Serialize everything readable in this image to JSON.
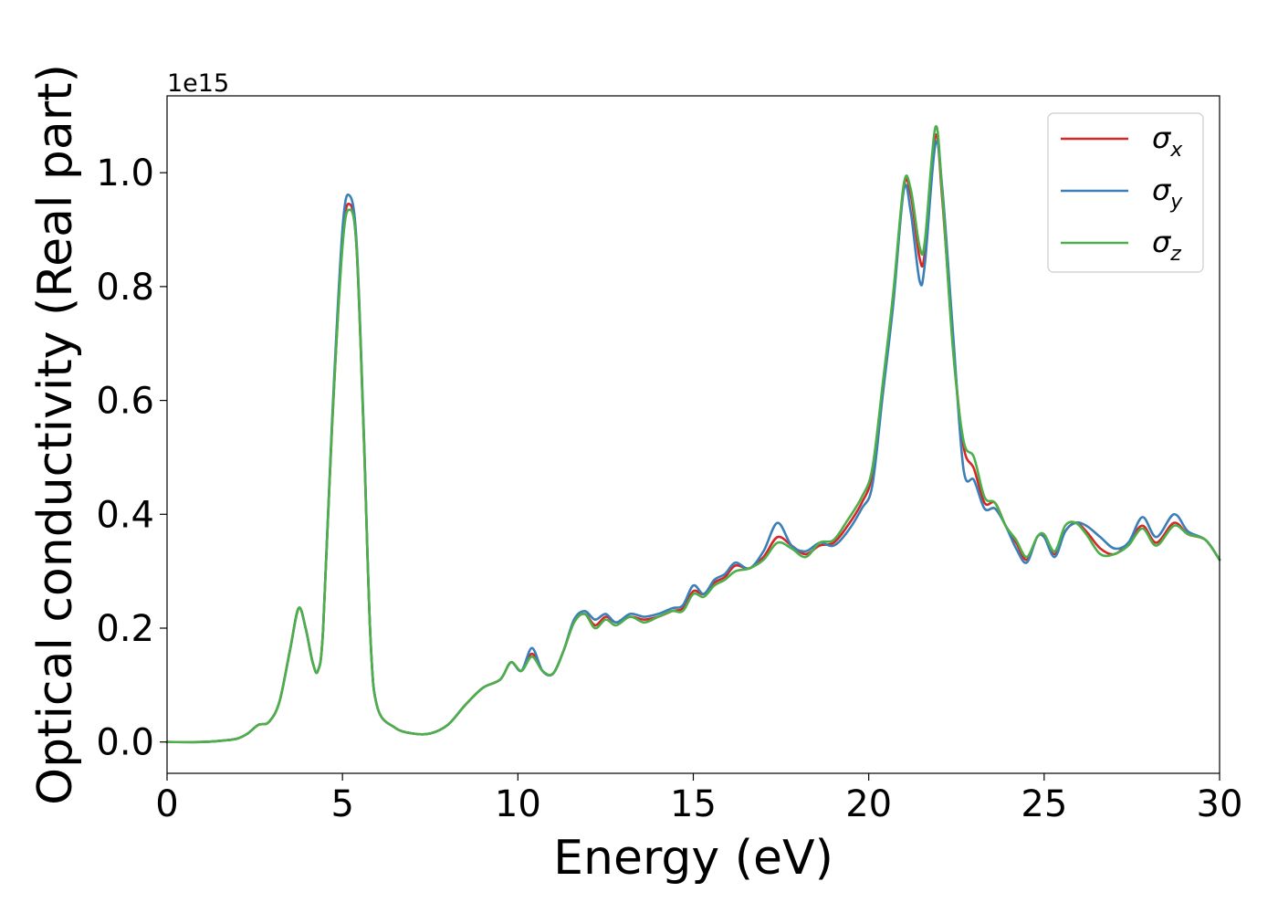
{
  "chart_data": {
    "type": "line",
    "xlabel": "Energy (eV)",
    "ylabel": "Optical conductivity (Real part)",
    "y_offset_label": "1e15",
    "y_scale_factor": 1000000000000000.0,
    "xlim": [
      0,
      30
    ],
    "ylim": [
      -0.055,
      1.135
    ],
    "x_ticks": [
      0,
      5,
      10,
      15,
      20,
      25,
      30
    ],
    "x_tick_labels": [
      "0",
      "5",
      "10",
      "15",
      "20",
      "25",
      "30"
    ],
    "y_ticks": [
      0.0,
      0.2,
      0.4,
      0.6,
      0.8,
      1.0
    ],
    "y_tick_labels": [
      "0.0",
      "0.2",
      "0.4",
      "0.6",
      "0.8",
      "1.0"
    ],
    "grid": false,
    "legend_position": "top-right",
    "series": [
      {
        "name": "σ",
        "subscript": "x",
        "color": "#d62728",
        "points": [
          [
            0,
            0.0
          ],
          [
            1,
            0.0
          ],
          [
            1.5,
            0.002
          ],
          [
            2,
            0.006
          ],
          [
            2.3,
            0.015
          ],
          [
            2.6,
            0.03
          ],
          [
            2.9,
            0.035
          ],
          [
            3.2,
            0.07
          ],
          [
            3.5,
            0.16
          ],
          [
            3.75,
            0.235
          ],
          [
            3.95,
            0.2
          ],
          [
            4.15,
            0.14
          ],
          [
            4.3,
            0.125
          ],
          [
            4.45,
            0.2
          ],
          [
            4.7,
            0.55
          ],
          [
            5.0,
            0.88
          ],
          [
            5.2,
            0.945
          ],
          [
            5.4,
            0.87
          ],
          [
            5.6,
            0.55
          ],
          [
            5.8,
            0.18
          ],
          [
            6.0,
            0.06
          ],
          [
            6.5,
            0.025
          ],
          [
            7.0,
            0.015
          ],
          [
            7.5,
            0.015
          ],
          [
            8.0,
            0.03
          ],
          [
            8.5,
            0.065
          ],
          [
            9.0,
            0.095
          ],
          [
            9.5,
            0.11
          ],
          [
            9.8,
            0.14
          ],
          [
            10.1,
            0.125
          ],
          [
            10.4,
            0.155
          ],
          [
            10.7,
            0.125
          ],
          [
            11.0,
            0.12
          ],
          [
            11.3,
            0.16
          ],
          [
            11.6,
            0.21
          ],
          [
            11.9,
            0.225
          ],
          [
            12.2,
            0.205
          ],
          [
            12.5,
            0.22
          ],
          [
            12.8,
            0.21
          ],
          [
            13.2,
            0.22
          ],
          [
            13.6,
            0.215
          ],
          [
            14.0,
            0.22
          ],
          [
            14.4,
            0.23
          ],
          [
            14.7,
            0.235
          ],
          [
            15.0,
            0.265
          ],
          [
            15.3,
            0.26
          ],
          [
            15.6,
            0.28
          ],
          [
            15.9,
            0.29
          ],
          [
            16.2,
            0.31
          ],
          [
            16.6,
            0.305
          ],
          [
            17.0,
            0.325
          ],
          [
            17.4,
            0.36
          ],
          [
            17.8,
            0.345
          ],
          [
            18.2,
            0.33
          ],
          [
            18.6,
            0.345
          ],
          [
            19.0,
            0.35
          ],
          [
            19.4,
            0.38
          ],
          [
            19.8,
            0.42
          ],
          [
            20.1,
            0.47
          ],
          [
            20.4,
            0.62
          ],
          [
            20.7,
            0.78
          ],
          [
            21.0,
            0.975
          ],
          [
            21.2,
            0.96
          ],
          [
            21.45,
            0.85
          ],
          [
            21.6,
            0.86
          ],
          [
            21.9,
            1.065
          ],
          [
            22.1,
            0.95
          ],
          [
            22.4,
            0.7
          ],
          [
            22.7,
            0.52
          ],
          [
            23.0,
            0.48
          ],
          [
            23.3,
            0.42
          ],
          [
            23.6,
            0.42
          ],
          [
            23.9,
            0.38
          ],
          [
            24.2,
            0.35
          ],
          [
            24.5,
            0.32
          ],
          [
            24.8,
            0.36
          ],
          [
            25.0,
            0.36
          ],
          [
            25.3,
            0.33
          ],
          [
            25.6,
            0.37
          ],
          [
            25.9,
            0.385
          ],
          [
            26.2,
            0.37
          ],
          [
            26.6,
            0.34
          ],
          [
            27.0,
            0.33
          ],
          [
            27.4,
            0.35
          ],
          [
            27.8,
            0.38
          ],
          [
            28.2,
            0.35
          ],
          [
            28.7,
            0.385
          ],
          [
            29.1,
            0.365
          ],
          [
            29.6,
            0.355
          ],
          [
            30.0,
            0.32
          ]
        ]
      },
      {
        "name": "σ",
        "subscript": "y",
        "color": "#3b7fb8",
        "points": [
          [
            0,
            0.0
          ],
          [
            1,
            0.0
          ],
          [
            1.5,
            0.002
          ],
          [
            2,
            0.006
          ],
          [
            2.3,
            0.015
          ],
          [
            2.6,
            0.03
          ],
          [
            2.9,
            0.035
          ],
          [
            3.2,
            0.07
          ],
          [
            3.5,
            0.16
          ],
          [
            3.75,
            0.235
          ],
          [
            3.95,
            0.2
          ],
          [
            4.15,
            0.14
          ],
          [
            4.3,
            0.125
          ],
          [
            4.45,
            0.2
          ],
          [
            4.7,
            0.56
          ],
          [
            5.0,
            0.9
          ],
          [
            5.2,
            0.96
          ],
          [
            5.4,
            0.88
          ],
          [
            5.6,
            0.56
          ],
          [
            5.8,
            0.18
          ],
          [
            6.0,
            0.06
          ],
          [
            6.5,
            0.025
          ],
          [
            7.0,
            0.015
          ],
          [
            7.5,
            0.015
          ],
          [
            8.0,
            0.03
          ],
          [
            8.5,
            0.065
          ],
          [
            9.0,
            0.095
          ],
          [
            9.5,
            0.11
          ],
          [
            9.8,
            0.14
          ],
          [
            10.1,
            0.125
          ],
          [
            10.4,
            0.165
          ],
          [
            10.7,
            0.125
          ],
          [
            11.0,
            0.12
          ],
          [
            11.3,
            0.16
          ],
          [
            11.6,
            0.215
          ],
          [
            11.9,
            0.23
          ],
          [
            12.2,
            0.215
          ],
          [
            12.5,
            0.225
          ],
          [
            12.8,
            0.21
          ],
          [
            13.2,
            0.225
          ],
          [
            13.6,
            0.22
          ],
          [
            14.0,
            0.225
          ],
          [
            14.4,
            0.235
          ],
          [
            14.7,
            0.24
          ],
          [
            15.0,
            0.275
          ],
          [
            15.3,
            0.26
          ],
          [
            15.6,
            0.285
          ],
          [
            15.9,
            0.295
          ],
          [
            16.2,
            0.315
          ],
          [
            16.6,
            0.305
          ],
          [
            17.0,
            0.335
          ],
          [
            17.4,
            0.385
          ],
          [
            17.8,
            0.345
          ],
          [
            18.2,
            0.335
          ],
          [
            18.6,
            0.35
          ],
          [
            19.0,
            0.345
          ],
          [
            19.4,
            0.37
          ],
          [
            19.8,
            0.41
          ],
          [
            20.1,
            0.45
          ],
          [
            20.4,
            0.61
          ],
          [
            20.7,
            0.77
          ],
          [
            21.0,
            0.97
          ],
          [
            21.2,
            0.93
          ],
          [
            21.45,
            0.81
          ],
          [
            21.6,
            0.84
          ],
          [
            21.9,
            1.05
          ],
          [
            22.1,
            0.97
          ],
          [
            22.4,
            0.72
          ],
          [
            22.7,
            0.48
          ],
          [
            23.0,
            0.46
          ],
          [
            23.3,
            0.41
          ],
          [
            23.6,
            0.41
          ],
          [
            23.9,
            0.38
          ],
          [
            24.2,
            0.34
          ],
          [
            24.5,
            0.315
          ],
          [
            24.8,
            0.36
          ],
          [
            25.0,
            0.36
          ],
          [
            25.3,
            0.325
          ],
          [
            25.6,
            0.37
          ],
          [
            25.9,
            0.385
          ],
          [
            26.2,
            0.38
          ],
          [
            26.6,
            0.36
          ],
          [
            27.0,
            0.34
          ],
          [
            27.4,
            0.35
          ],
          [
            27.8,
            0.395
          ],
          [
            28.2,
            0.36
          ],
          [
            28.7,
            0.4
          ],
          [
            29.1,
            0.37
          ],
          [
            29.6,
            0.355
          ],
          [
            30.0,
            0.32
          ]
        ]
      },
      {
        "name": "σ",
        "subscript": "z",
        "color": "#4daf4a",
        "points": [
          [
            0,
            0.0
          ],
          [
            1,
            0.0
          ],
          [
            1.5,
            0.002
          ],
          [
            2,
            0.006
          ],
          [
            2.3,
            0.015
          ],
          [
            2.6,
            0.03
          ],
          [
            2.9,
            0.035
          ],
          [
            3.2,
            0.07
          ],
          [
            3.5,
            0.16
          ],
          [
            3.75,
            0.235
          ],
          [
            3.95,
            0.2
          ],
          [
            4.15,
            0.14
          ],
          [
            4.3,
            0.125
          ],
          [
            4.45,
            0.2
          ],
          [
            4.7,
            0.55
          ],
          [
            5.0,
            0.87
          ],
          [
            5.2,
            0.935
          ],
          [
            5.4,
            0.87
          ],
          [
            5.6,
            0.55
          ],
          [
            5.8,
            0.18
          ],
          [
            6.0,
            0.06
          ],
          [
            6.5,
            0.025
          ],
          [
            7.0,
            0.015
          ],
          [
            7.5,
            0.015
          ],
          [
            8.0,
            0.03
          ],
          [
            8.5,
            0.065
          ],
          [
            9.0,
            0.095
          ],
          [
            9.5,
            0.11
          ],
          [
            9.8,
            0.14
          ],
          [
            10.1,
            0.125
          ],
          [
            10.4,
            0.15
          ],
          [
            10.7,
            0.125
          ],
          [
            11.0,
            0.12
          ],
          [
            11.3,
            0.16
          ],
          [
            11.6,
            0.21
          ],
          [
            11.9,
            0.225
          ],
          [
            12.2,
            0.2
          ],
          [
            12.5,
            0.215
          ],
          [
            12.8,
            0.205
          ],
          [
            13.2,
            0.22
          ],
          [
            13.6,
            0.21
          ],
          [
            14.0,
            0.22
          ],
          [
            14.4,
            0.23
          ],
          [
            14.7,
            0.23
          ],
          [
            15.0,
            0.26
          ],
          [
            15.3,
            0.255
          ],
          [
            15.6,
            0.275
          ],
          [
            15.9,
            0.285
          ],
          [
            16.2,
            0.3
          ],
          [
            16.6,
            0.305
          ],
          [
            17.0,
            0.32
          ],
          [
            17.4,
            0.35
          ],
          [
            17.8,
            0.34
          ],
          [
            18.2,
            0.325
          ],
          [
            18.6,
            0.35
          ],
          [
            19.0,
            0.355
          ],
          [
            19.4,
            0.39
          ],
          [
            19.8,
            0.43
          ],
          [
            20.1,
            0.48
          ],
          [
            20.4,
            0.63
          ],
          [
            20.7,
            0.79
          ],
          [
            21.0,
            0.98
          ],
          [
            21.2,
            0.97
          ],
          [
            21.45,
            0.87
          ],
          [
            21.6,
            0.88
          ],
          [
            21.9,
            1.08
          ],
          [
            22.1,
            0.96
          ],
          [
            22.4,
            0.69
          ],
          [
            22.7,
            0.53
          ],
          [
            23.0,
            0.5
          ],
          [
            23.3,
            0.43
          ],
          [
            23.6,
            0.42
          ],
          [
            23.9,
            0.38
          ],
          [
            24.2,
            0.355
          ],
          [
            24.5,
            0.325
          ],
          [
            24.8,
            0.36
          ],
          [
            25.0,
            0.365
          ],
          [
            25.3,
            0.335
          ],
          [
            25.6,
            0.38
          ],
          [
            25.9,
            0.385
          ],
          [
            26.2,
            0.365
          ],
          [
            26.6,
            0.33
          ],
          [
            27.0,
            0.33
          ],
          [
            27.4,
            0.345
          ],
          [
            27.8,
            0.375
          ],
          [
            28.2,
            0.345
          ],
          [
            28.7,
            0.38
          ],
          [
            29.1,
            0.365
          ],
          [
            29.6,
            0.355
          ],
          [
            30.0,
            0.32
          ]
        ]
      }
    ]
  }
}
